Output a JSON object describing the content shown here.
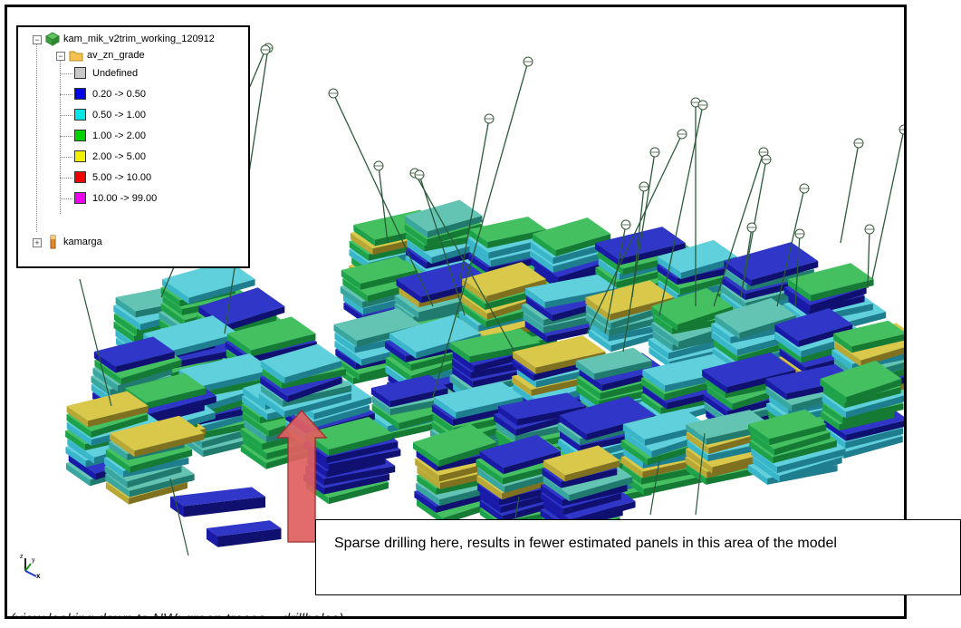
{
  "legend": {
    "model_name": "kam_mik_v2trim_working_120912",
    "attribute": "av_zn_grade",
    "classes": [
      {
        "label": "Undefined",
        "color": "#c8c8c8"
      },
      {
        "label": "0.20 -> 0.50",
        "color": "#0000e6"
      },
      {
        "label": "0.50 -> 1.00",
        "color": "#00e6e6"
      },
      {
        "label": "1.00 -> 2.00",
        "color": "#00d200"
      },
      {
        "label": "2.00 -> 5.00",
        "color": "#f0f000"
      },
      {
        "label": "5.00 -> 10.00",
        "color": "#f00000"
      },
      {
        "label": "10.00 -> 99.00",
        "color": "#f000f0"
      }
    ],
    "second_item": "kamarga"
  },
  "annotation": {
    "text": "Sparse drilling here, results in fewer estimated panels in this area of the model",
    "arrow_color": "#e06060"
  },
  "caption": "(view looking down to NW; green traces = drillholes)",
  "axis_labels": {
    "z": "z",
    "y": "y",
    "x": "x"
  },
  "icons": [
    "model-icon",
    "folder-icon",
    "drillhole-icon",
    "axis-triad-icon"
  ]
}
